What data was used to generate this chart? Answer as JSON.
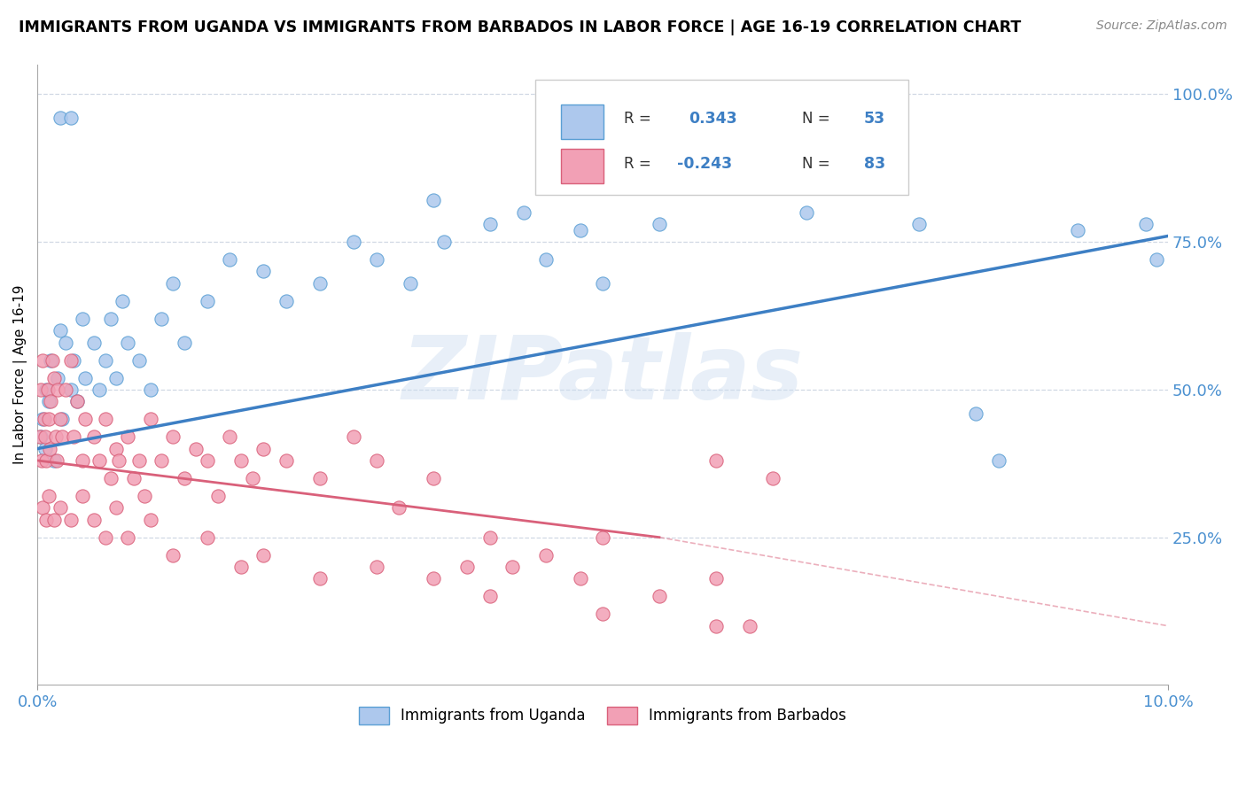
{
  "title": "IMMIGRANTS FROM UGANDA VS IMMIGRANTS FROM BARBADOS IN LABOR FORCE | AGE 16-19 CORRELATION CHART",
  "source": "Source: ZipAtlas.com",
  "ylabel": "In Labor Force | Age 16-19",
  "watermark": "ZIPatlas",
  "uganda_color": "#adc8ed",
  "barbados_color": "#f2a0b5",
  "uganda_edge_color": "#5a9fd4",
  "barbados_edge_color": "#d9607a",
  "uganda_line_color": "#3d7fc4",
  "barbados_line_color": "#d9607a",
  "tick_color": "#4a90d0",
  "grid_color": "#d0d8e4",
  "xlim": [
    0.0,
    0.1
  ],
  "ylim": [
    0.0,
    1.05
  ],
  "dpi": 100,
  "figsize": [
    14.06,
    8.92
  ],
  "uganda_scatter": [
    [
      0.0003,
      0.42
    ],
    [
      0.0005,
      0.45
    ],
    [
      0.0007,
      0.4
    ],
    [
      0.0008,
      0.5
    ],
    [
      0.001,
      0.48
    ],
    [
      0.0012,
      0.55
    ],
    [
      0.0015,
      0.38
    ],
    [
      0.0018,
      0.52
    ],
    [
      0.002,
      0.6
    ],
    [
      0.0022,
      0.45
    ],
    [
      0.0025,
      0.58
    ],
    [
      0.003,
      0.5
    ],
    [
      0.0032,
      0.55
    ],
    [
      0.0035,
      0.48
    ],
    [
      0.004,
      0.62
    ],
    [
      0.0042,
      0.52
    ],
    [
      0.005,
      0.58
    ],
    [
      0.0055,
      0.5
    ],
    [
      0.006,
      0.55
    ],
    [
      0.0065,
      0.62
    ],
    [
      0.007,
      0.52
    ],
    [
      0.0075,
      0.65
    ],
    [
      0.008,
      0.58
    ],
    [
      0.009,
      0.55
    ],
    [
      0.01,
      0.5
    ],
    [
      0.011,
      0.62
    ],
    [
      0.012,
      0.68
    ],
    [
      0.013,
      0.58
    ],
    [
      0.015,
      0.65
    ],
    [
      0.017,
      0.72
    ],
    [
      0.02,
      0.7
    ],
    [
      0.022,
      0.65
    ],
    [
      0.025,
      0.68
    ],
    [
      0.028,
      0.75
    ],
    [
      0.03,
      0.72
    ],
    [
      0.033,
      0.68
    ],
    [
      0.036,
      0.75
    ],
    [
      0.04,
      0.78
    ],
    [
      0.043,
      0.8
    ],
    [
      0.045,
      0.72
    ],
    [
      0.048,
      0.77
    ],
    [
      0.05,
      0.68
    ],
    [
      0.002,
      0.96
    ],
    [
      0.003,
      0.96
    ],
    [
      0.035,
      0.82
    ],
    [
      0.055,
      0.78
    ],
    [
      0.068,
      0.8
    ],
    [
      0.078,
      0.78
    ],
    [
      0.083,
      0.46
    ],
    [
      0.085,
      0.38
    ],
    [
      0.092,
      0.77
    ],
    [
      0.098,
      0.78
    ],
    [
      0.099,
      0.72
    ]
  ],
  "barbados_scatter": [
    [
      0.0002,
      0.42
    ],
    [
      0.0003,
      0.5
    ],
    [
      0.0004,
      0.38
    ],
    [
      0.0005,
      0.55
    ],
    [
      0.0006,
      0.45
    ],
    [
      0.0007,
      0.42
    ],
    [
      0.0008,
      0.38
    ],
    [
      0.0009,
      0.5
    ],
    [
      0.001,
      0.45
    ],
    [
      0.0011,
      0.4
    ],
    [
      0.0012,
      0.48
    ],
    [
      0.0013,
      0.55
    ],
    [
      0.0015,
      0.52
    ],
    [
      0.0016,
      0.42
    ],
    [
      0.0017,
      0.38
    ],
    [
      0.0018,
      0.5
    ],
    [
      0.002,
      0.45
    ],
    [
      0.0022,
      0.42
    ],
    [
      0.0025,
      0.5
    ],
    [
      0.003,
      0.55
    ],
    [
      0.0032,
      0.42
    ],
    [
      0.0035,
      0.48
    ],
    [
      0.004,
      0.38
    ],
    [
      0.0042,
      0.45
    ],
    [
      0.005,
      0.42
    ],
    [
      0.0055,
      0.38
    ],
    [
      0.006,
      0.45
    ],
    [
      0.0065,
      0.35
    ],
    [
      0.007,
      0.4
    ],
    [
      0.0072,
      0.38
    ],
    [
      0.008,
      0.42
    ],
    [
      0.0085,
      0.35
    ],
    [
      0.009,
      0.38
    ],
    [
      0.0095,
      0.32
    ],
    [
      0.01,
      0.45
    ],
    [
      0.011,
      0.38
    ],
    [
      0.012,
      0.42
    ],
    [
      0.013,
      0.35
    ],
    [
      0.014,
      0.4
    ],
    [
      0.015,
      0.38
    ],
    [
      0.016,
      0.32
    ],
    [
      0.017,
      0.42
    ],
    [
      0.018,
      0.38
    ],
    [
      0.019,
      0.35
    ],
    [
      0.02,
      0.4
    ],
    [
      0.022,
      0.38
    ],
    [
      0.025,
      0.35
    ],
    [
      0.028,
      0.42
    ],
    [
      0.03,
      0.38
    ],
    [
      0.032,
      0.3
    ],
    [
      0.035,
      0.35
    ],
    [
      0.0005,
      0.3
    ],
    [
      0.0008,
      0.28
    ],
    [
      0.001,
      0.32
    ],
    [
      0.0015,
      0.28
    ],
    [
      0.002,
      0.3
    ],
    [
      0.003,
      0.28
    ],
    [
      0.004,
      0.32
    ],
    [
      0.005,
      0.28
    ],
    [
      0.006,
      0.25
    ],
    [
      0.007,
      0.3
    ],
    [
      0.008,
      0.25
    ],
    [
      0.01,
      0.28
    ],
    [
      0.012,
      0.22
    ],
    [
      0.015,
      0.25
    ],
    [
      0.018,
      0.2
    ],
    [
      0.02,
      0.22
    ],
    [
      0.025,
      0.18
    ],
    [
      0.03,
      0.2
    ],
    [
      0.035,
      0.18
    ],
    [
      0.04,
      0.15
    ],
    [
      0.05,
      0.12
    ],
    [
      0.06,
      0.1
    ],
    [
      0.038,
      0.2
    ],
    [
      0.04,
      0.25
    ],
    [
      0.042,
      0.2
    ],
    [
      0.045,
      0.22
    ],
    [
      0.048,
      0.18
    ],
    [
      0.05,
      0.25
    ],
    [
      0.055,
      0.15
    ],
    [
      0.06,
      0.18
    ],
    [
      0.063,
      0.1
    ],
    [
      0.06,
      0.38
    ],
    [
      0.065,
      0.35
    ]
  ],
  "uganda_trendline": [
    0.0,
    0.1,
    0.4,
    0.76
  ],
  "barbados_trendline_solid": [
    0.0,
    0.055,
    0.38,
    0.25
  ],
  "barbados_trendline_dashed": [
    0.055,
    0.1,
    0.25,
    0.1
  ]
}
